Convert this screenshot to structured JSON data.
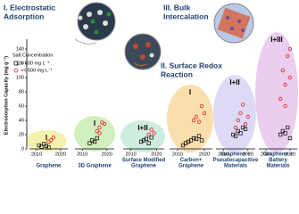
{
  "chart_data": {
    "type": "scatter",
    "annotations": [
      [
        "I. Electrostatic",
        "Adsorption"
      ],
      [
        "III. Bulk",
        "Intercalation"
      ],
      [
        "II. Surface Redox",
        "Reaction"
      ]
    ],
    "ylabel": "Electrosorption Capacity (mg g⁻¹)",
    "ylim": [
      0,
      150
    ],
    "yticks": [
      0,
      20,
      40,
      60,
      80,
      100,
      120,
      140
    ],
    "xlim": [
      2007,
      2023
    ],
    "xticks": [
      2010,
      2020
    ],
    "legend_title": "Salt Concentration",
    "series": [
      {
        "name": "< 500 mg L⁻¹",
        "color": "#000000",
        "marker": "square"
      },
      {
        "name": ">= 500 mg L⁻¹",
        "color": "#e02020",
        "marker": "circle"
      }
    ],
    "panels": [
      {
        "name": [
          "Graphene"
        ],
        "mechanism": "I",
        "color": "#f3efa0",
        "points": [
          {
            "x": [
              2011,
              2012,
              2013,
              2014,
              2015
            ],
            "y": [
              5,
              3,
              7,
              4,
              2
            ]
          },
          {
            "x": [
              2015,
              2016,
              2017
            ],
            "y": [
              10,
              12,
              16
            ]
          }
        ]
      },
      {
        "name": [
          "3D Graphene"
        ],
        "mechanism": "I",
        "color": "#c9ecb4",
        "points": [
          {
            "x": [
              2013,
              2014,
              2015,
              2016
            ],
            "y": [
              8,
              12,
              10,
              15
            ]
          },
          {
            "x": [
              2016,
              2017,
              2017,
              2018,
              2019
            ],
            "y": [
              25,
              22,
              30,
              37,
              35
            ]
          }
        ]
      },
      {
        "name": [
          "Surface Modified",
          "Graphene"
        ],
        "mechanism": "I+II",
        "color": "#c4ead8",
        "points": [
          {
            "x": [
              2014,
              2015,
              2016,
              2017,
              2018
            ],
            "y": [
              10,
              12,
              14,
              8,
              16
            ]
          },
          {
            "x": [
              2017,
              2018,
              2019
            ],
            "y": [
              20,
              27,
              22
            ]
          }
        ]
      },
      {
        "name": [
          "Carbon+",
          "Graphene"
        ],
        "mechanism": "I",
        "color": "#f8d9a0",
        "points": [
          {
            "x": [
              2012,
              2013,
              2014,
              2015,
              2016,
              2017,
              2018,
              2019
            ],
            "y": [
              5,
              8,
              10,
              12,
              15,
              14,
              18,
              12
            ]
          },
          {
            "x": [
              2016,
              2017,
              2018,
              2019,
              2020
            ],
            "y": [
              40,
              45,
              38,
              60,
              50
            ]
          }
        ]
      },
      {
        "name": [
          "Graphene +",
          "Pseudocapacitive",
          "Materials"
        ],
        "mechanism": "I+II",
        "color": "#d8d4f4",
        "points": [
          {
            "x": [
              2014,
              2015,
              2016,
              2017,
              2018,
              2019
            ],
            "y": [
              20,
              18,
              25,
              22,
              30,
              28
            ]
          },
          {
            "x": [
              2015,
              2016,
              2017,
              2018,
              2019,
              2020
            ],
            "y": [
              30,
              40,
              50,
              62,
              35,
              45
            ]
          }
        ]
      },
      {
        "name": [
          "Graphene +",
          "Battery",
          "Materials"
        ],
        "mechanism": "I+III",
        "color": "#e8c4ec",
        "points": [
          {
            "x": [
              2016,
              2017,
              2018,
              2019,
              2020
            ],
            "y": [
              20,
              25,
              22,
              30,
              15
            ]
          },
          {
            "x": [
              2016,
              2017,
              2018,
              2018,
              2019,
              2020,
              2020
            ],
            "y": [
              70,
              110,
              60,
              90,
              130,
              140,
              100
            ]
          }
        ]
      }
    ]
  }
}
